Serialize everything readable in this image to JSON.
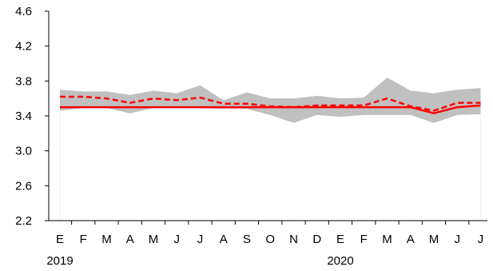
{
  "chart_data": {
    "type": "line",
    "title": "",
    "xlabel": "",
    "ylabel": "",
    "ylim": [
      2.2,
      4.6
    ],
    "yticks": [
      "2.2",
      "2.6",
      "3.0",
      "3.4",
      "3.8",
      "4.2",
      "4.6"
    ],
    "categories": [
      "E",
      "F",
      "M",
      "A",
      "M",
      "J",
      "J",
      "A",
      "S",
      "O",
      "N",
      "D",
      "E",
      "F",
      "M",
      "A",
      "M",
      "J",
      "J"
    ],
    "year_labels": [
      {
        "label": "2019",
        "index": 0
      },
      {
        "label": "2020",
        "index": 12
      }
    ],
    "band": {
      "upper": [
        3.7,
        3.68,
        3.68,
        3.64,
        3.69,
        3.66,
        3.75,
        3.58,
        3.67,
        3.6,
        3.6,
        3.63,
        3.6,
        3.61,
        3.84,
        3.69,
        3.66,
        3.7,
        3.72
      ],
      "lower": [
        3.46,
        3.49,
        3.49,
        3.43,
        3.49,
        3.49,
        3.49,
        3.48,
        3.48,
        3.41,
        3.32,
        3.41,
        3.39,
        3.41,
        3.41,
        3.41,
        3.32,
        3.41,
        3.42
      ],
      "color": "#c0c0c0"
    },
    "series": [
      {
        "style": "solid",
        "color": "#ff0000",
        "values": [
          3.5,
          3.5,
          3.5,
          3.5,
          3.5,
          3.5,
          3.5,
          3.5,
          3.5,
          3.5,
          3.5,
          3.5,
          3.5,
          3.5,
          3.5,
          3.5,
          3.43,
          3.5,
          3.52
        ]
      },
      {
        "style": "dashed",
        "color": "#ff0000",
        "values": [
          3.62,
          3.62,
          3.6,
          3.55,
          3.6,
          3.58,
          3.61,
          3.54,
          3.54,
          3.51,
          3.5,
          3.52,
          3.52,
          3.52,
          3.6,
          3.51,
          3.46,
          3.55,
          3.55
        ]
      }
    ],
    "grid": false,
    "legend": "none"
  }
}
